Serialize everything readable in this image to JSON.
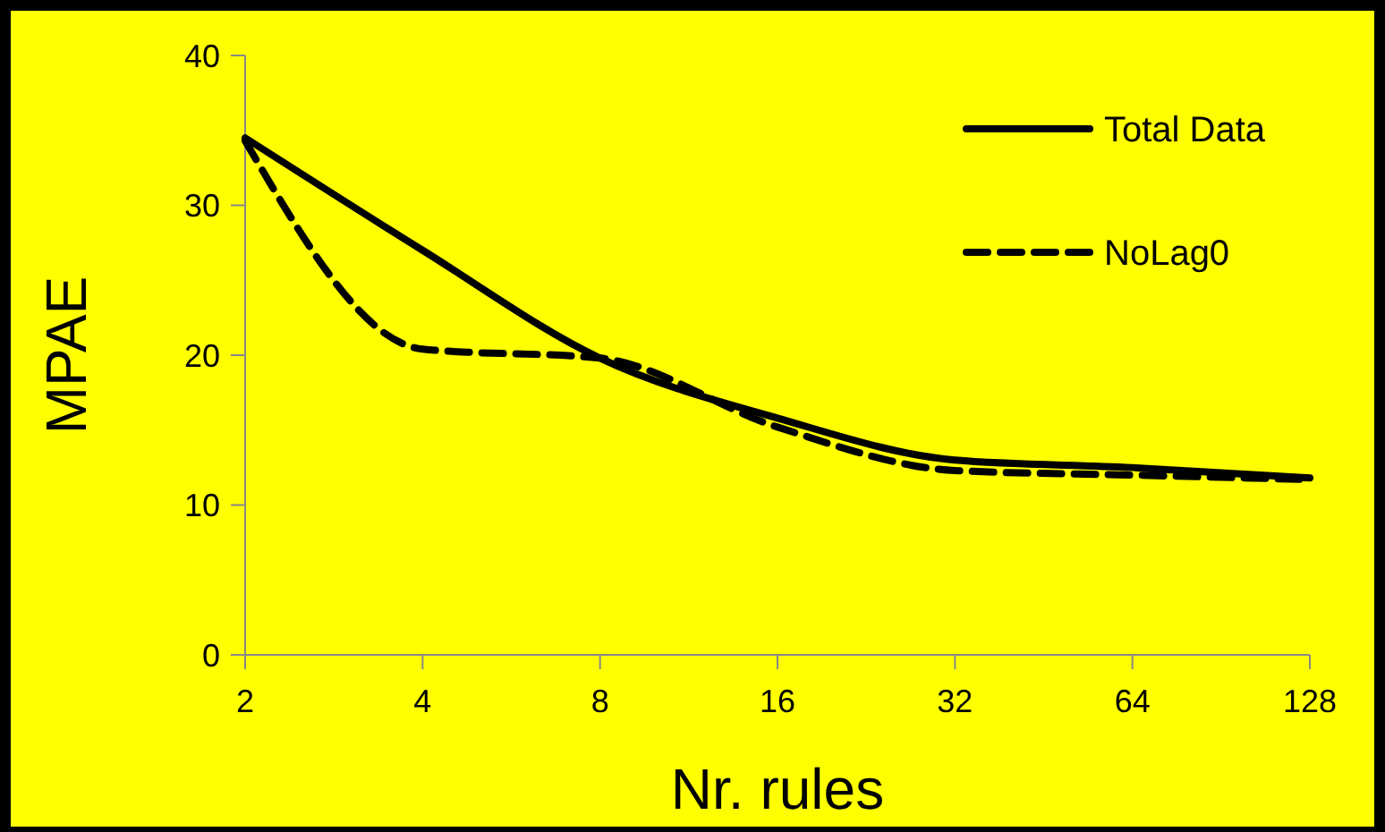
{
  "chart_data": {
    "type": "line",
    "xlabel": "Nr. rules",
    "ylabel": "MPAE",
    "categories": [
      "2",
      "4",
      "8",
      "16",
      "32",
      "64",
      "128"
    ],
    "ylim": [
      0,
      40
    ],
    "yticks": [
      0,
      10,
      20,
      30,
      40
    ],
    "legend": "top right",
    "grid": false,
    "series": [
      {
        "name": "Total Data",
        "color": "#000000",
        "line_style": "solid",
        "values": [
          34.5,
          27,
          19.8,
          15.8,
          13,
          12.5,
          11.8
        ]
      },
      {
        "name": "NoLag0",
        "color": "#000000",
        "line_style": "dashed",
        "values": [
          34.3,
          20.4,
          19.8,
          15.2,
          12.3,
          12,
          11.7
        ]
      }
    ]
  }
}
